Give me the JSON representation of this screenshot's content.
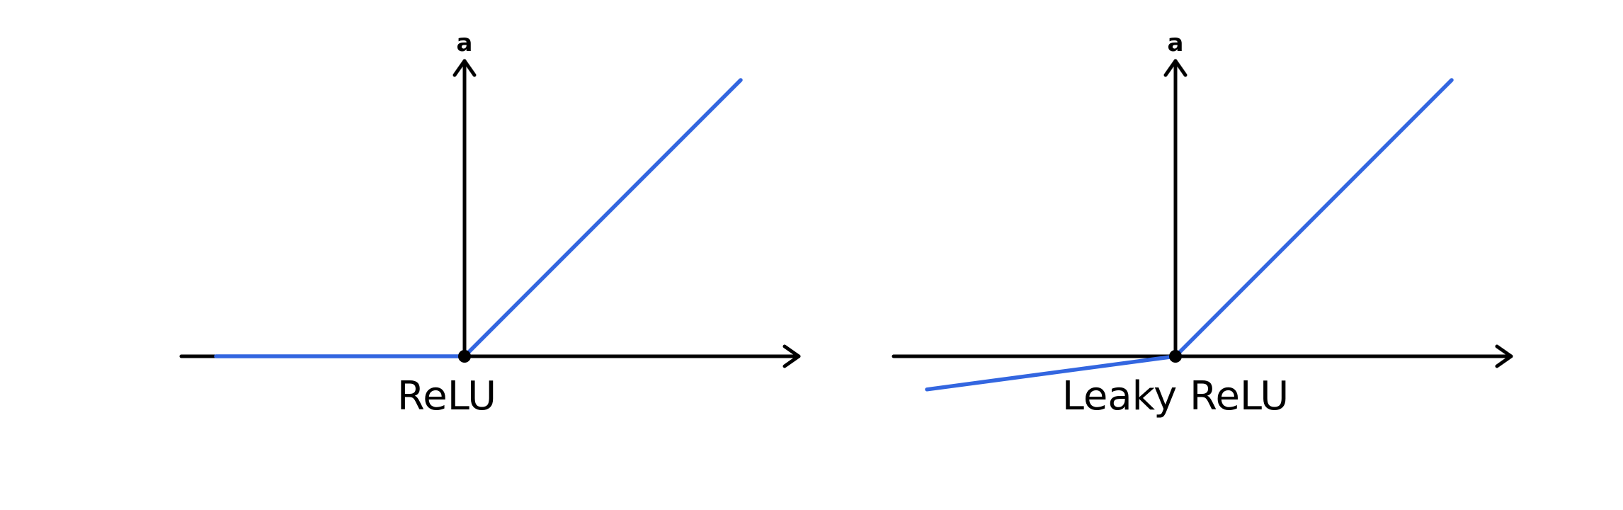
{
  "colors": {
    "axis": "#000000",
    "series": "#3366e0",
    "background": "#ffffff"
  },
  "chart_data": [
    {
      "type": "line",
      "title": "ReLU",
      "xlabel": "",
      "ylabel": "a",
      "xlim": [
        -5,
        6.5
      ],
      "ylim": [
        0,
        5
      ],
      "grid": false,
      "series": [
        {
          "x": [
            -4.5,
            0,
            5
          ],
          "y": [
            0,
            0,
            5
          ]
        }
      ]
    },
    {
      "type": "line",
      "title": "Leaky ReLU",
      "xlabel": "",
      "ylabel": "a",
      "xlim": [
        -5,
        6.5
      ],
      "ylim": [
        -0.6,
        5
      ],
      "grid": false,
      "series": [
        {
          "x": [
            -4.5,
            0,
            5
          ],
          "y": [
            -0.6,
            0,
            5
          ]
        }
      ]
    }
  ]
}
